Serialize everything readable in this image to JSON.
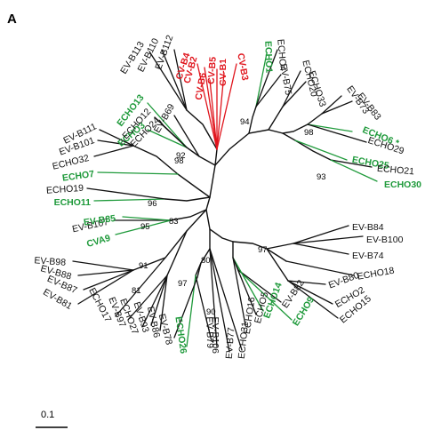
{
  "panel_label": "A",
  "scale_bar_label": "0.1",
  "colors": {
    "red": "#e0151d",
    "green": "#1f9a3b",
    "black": "#111111"
  },
  "leaves": [
    {
      "id": "cvb4",
      "label": "CV-B4",
      "color": "red"
    },
    {
      "id": "cvb2",
      "label": "CV-B2",
      "color": "red"
    },
    {
      "id": "cvb6",
      "label": "CV-B6",
      "color": "red"
    },
    {
      "id": "cvb5",
      "label": "CV-B5",
      "color": "red"
    },
    {
      "id": "cvb1",
      "label": "CV-B1",
      "color": "red"
    },
    {
      "id": "cvb3",
      "label": "CV-B3",
      "color": "red"
    },
    {
      "id": "echo1",
      "label": "ECHO1",
      "color": "green"
    },
    {
      "id": "echo4",
      "label": "ECHO4",
      "color": "black"
    },
    {
      "id": "evb75",
      "label": "EV-B75",
      "color": "black"
    },
    {
      "id": "echo20",
      "label": "ECHO20",
      "color": "black"
    },
    {
      "id": "echo33",
      "label": "ECHO33",
      "color": "black"
    },
    {
      "id": "evb73",
      "label": "EV-B73",
      "color": "black"
    },
    {
      "id": "evb83",
      "label": "EV-B83",
      "color": "black"
    },
    {
      "id": "echo6",
      "label": "ECHO6 *",
      "color": "green"
    },
    {
      "id": "echo29",
      "label": "ECHO29",
      "color": "black"
    },
    {
      "id": "echo25",
      "label": "ECHO25",
      "color": "green"
    },
    {
      "id": "echo21",
      "label": "ECHO21",
      "color": "black"
    },
    {
      "id": "echo30",
      "label": "ECHO30",
      "color": "green"
    },
    {
      "id": "evb84",
      "label": "EV-B84",
      "color": "black"
    },
    {
      "id": "evb100",
      "label": "EV-B100",
      "color": "black"
    },
    {
      "id": "evb74",
      "label": "EV-B74",
      "color": "black"
    },
    {
      "id": "echo18",
      "label": "ECHO18",
      "color": "black"
    },
    {
      "id": "evb80",
      "label": "EV-B80",
      "color": "black"
    },
    {
      "id": "echo2",
      "label": "ECHO2",
      "color": "black"
    },
    {
      "id": "echo15",
      "label": "ECHO15",
      "color": "black"
    },
    {
      "id": "echo9",
      "label": "ECHO9",
      "color": "green"
    },
    {
      "id": "evb82",
      "label": "EV-B82",
      "color": "black"
    },
    {
      "id": "echo14",
      "label": "ECHO14",
      "color": "green"
    },
    {
      "id": "echo5",
      "label": "ECHO5",
      "color": "black"
    },
    {
      "id": "echo16",
      "label": "ECHO16",
      "color": "black"
    },
    {
      "id": "echo31",
      "label": "ECHO31",
      "color": "black"
    },
    {
      "id": "evb77",
      "label": "EV-B77",
      "color": "black"
    },
    {
      "id": "evb106",
      "label": "EV-B106",
      "color": "black"
    },
    {
      "id": "evb79",
      "label": "EV-B79",
      "color": "black"
    },
    {
      "id": "echo26",
      "label": "ECHO26",
      "color": "green"
    },
    {
      "id": "evb78",
      "label": "EV-B78",
      "color": "black"
    },
    {
      "id": "evb86",
      "label": "EV-B86",
      "color": "black"
    },
    {
      "id": "evb93",
      "label": "EV-B93",
      "color": "black"
    },
    {
      "id": "echo27",
      "label": "ECHO27",
      "color": "black"
    },
    {
      "id": "evb97",
      "label": "EV-B97",
      "color": "black"
    },
    {
      "id": "echo17",
      "label": "ECHO17",
      "color": "black"
    },
    {
      "id": "evb81",
      "label": "EV-B81",
      "color": "black"
    },
    {
      "id": "evb87",
      "label": "EV-B87",
      "color": "black"
    },
    {
      "id": "evb88",
      "label": "EV-B88",
      "color": "black"
    },
    {
      "id": "evb98",
      "label": "EV-B98",
      "color": "black"
    },
    {
      "id": "cva9",
      "label": "CVA9",
      "color": "green"
    },
    {
      "id": "evb107",
      "label": "EV-B107",
      "color": "black"
    },
    {
      "id": "evb85",
      "label": "EV-B85",
      "color": "green"
    },
    {
      "id": "echo11",
      "label": "ECHO11",
      "color": "green"
    },
    {
      "id": "echo19",
      "label": "ECHO19",
      "color": "black"
    },
    {
      "id": "echo7",
      "label": "ECHO7",
      "color": "green"
    },
    {
      "id": "echo32",
      "label": "ECHO32",
      "color": "black"
    },
    {
      "id": "evb101",
      "label": "EV-B101",
      "color": "black"
    },
    {
      "id": "evb111",
      "label": "EV-B111",
      "color": "black"
    },
    {
      "id": "echo3",
      "label": "ECHO3",
      "color": "green"
    },
    {
      "id": "echo24",
      "label": "ECHO24",
      "color": "black"
    },
    {
      "id": "echo13",
      "label": "ECHO13",
      "color": "green"
    },
    {
      "id": "echo12",
      "label": "ECHO12",
      "color": "black"
    },
    {
      "id": "evb69",
      "label": "EV-B69",
      "color": "black"
    },
    {
      "id": "evb113",
      "label": "EV-B113",
      "color": "black"
    },
    {
      "id": "evb110",
      "label": "EV-B110",
      "color": "black"
    },
    {
      "id": "evb112",
      "label": "EV-B112",
      "color": "black"
    }
  ],
  "bootstrap": [
    {
      "id": "b94",
      "value": "94"
    },
    {
      "id": "b98a",
      "value": "98"
    },
    {
      "id": "b93",
      "value": "93"
    },
    {
      "id": "b97a",
      "value": "97"
    },
    {
      "id": "b80",
      "value": "80"
    },
    {
      "id": "b90",
      "value": "90"
    },
    {
      "id": "b97b",
      "value": "97"
    },
    {
      "id": "b91",
      "value": "91"
    },
    {
      "id": "b81",
      "value": "81"
    },
    {
      "id": "b95",
      "value": "95"
    },
    {
      "id": "b83",
      "value": "83"
    },
    {
      "id": "b96",
      "value": "96"
    },
    {
      "id": "b92",
      "value": "92"
    },
    {
      "id": "b98b",
      "value": "98"
    }
  ]
}
